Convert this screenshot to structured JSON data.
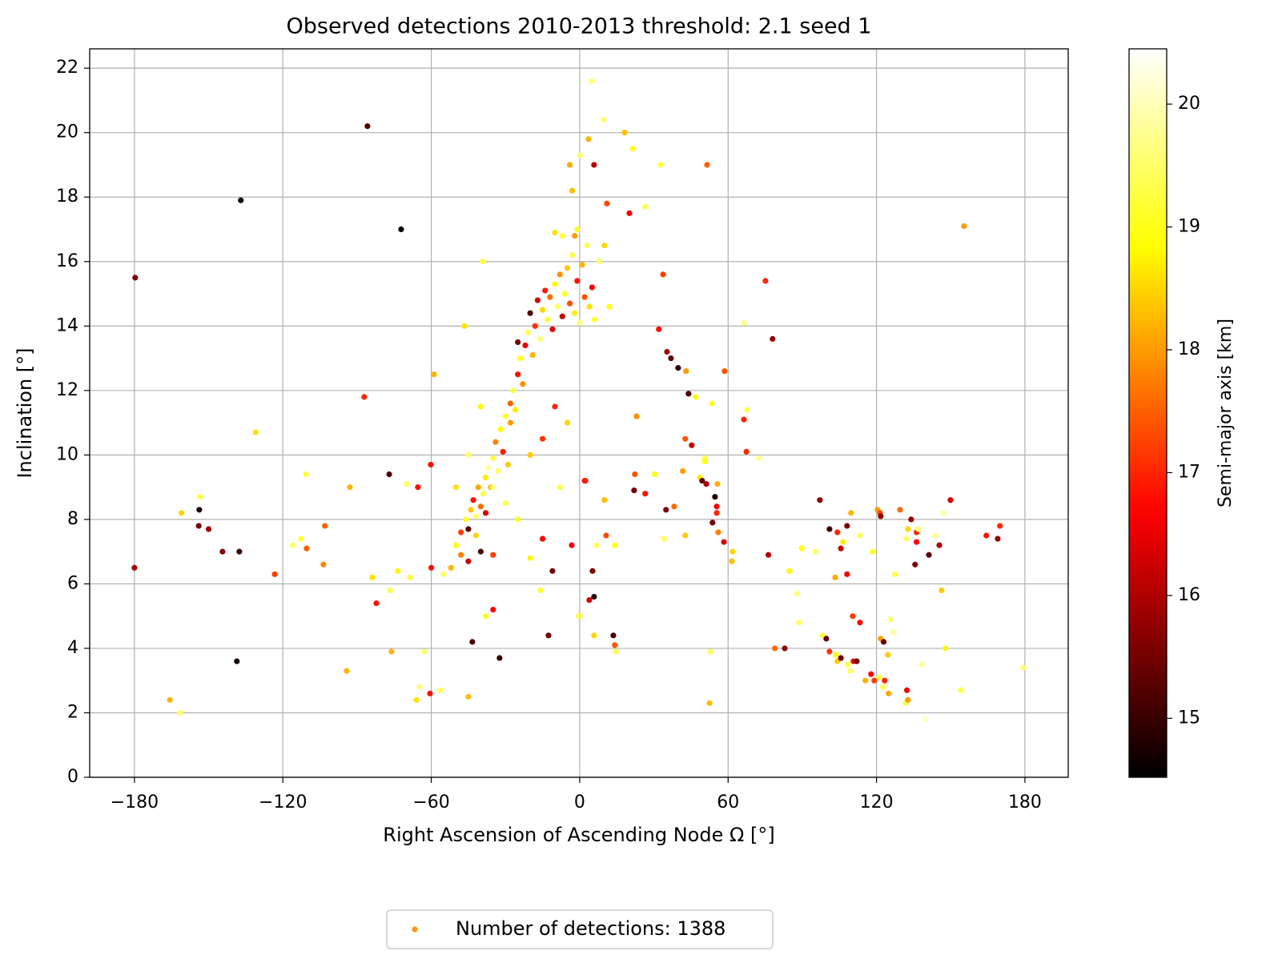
{
  "chart_data": {
    "type": "scatter",
    "title": "Observed detections 2010-2013  threshold: 2.1 seed 1",
    "xlabel": "Right Ascension of Ascending Node Ω [°]",
    "ylabel": "Inclination [°]",
    "colorbar_label": "Semi-major axis [km]",
    "colormap": "hot",
    "clim": [
      14.52,
      20.45
    ],
    "cticks": [
      15,
      16,
      17,
      18,
      19,
      20
    ],
    "xlim": [
      -198.1,
      197.5
    ],
    "ylim": [
      0,
      22.6
    ],
    "xticks": [
      {
        "value": -180,
        "label": "−180"
      },
      {
        "value": -120,
        "label": "−120"
      },
      {
        "value": -60,
        "label": "−60"
      },
      0,
      60,
      120,
      180
    ],
    "yticks": [
      0,
      2,
      4,
      6,
      8,
      10,
      12,
      14,
      16,
      18,
      20,
      22
    ],
    "grid": true,
    "legend": {
      "label": "Number of detections: 1388",
      "color": "#f7960f",
      "loc": "lower center"
    },
    "x": [
      -179.7,
      -180,
      -137,
      -85.8,
      -72.2,
      155.4,
      -165.7,
      -161.5,
      -153.8,
      -153.5,
      -161,
      -154,
      -150,
      -144.4,
      -137.6,
      -138.6,
      -131,
      -123.3,
      -116,
      -112.7,
      -110.7,
      -110.4,
      -103.6,
      -103,
      -94.2,
      -92.9,
      -87.1,
      -83.8,
      -82.2,
      -77,
      -76.1,
      -76.7,
      -73.5,
      -69.9,
      -68.6,
      -66,
      -64.7,
      -65.4,
      -62.8,
      -60.5,
      -60.2,
      -58.9,
      -56.3,
      -45,
      -43.4,
      -46.6,
      -39.2,
      -32.4,
      -35,
      -37.9,
      -12.6,
      -15.9,
      -11,
      -3.2,
      -0.3,
      3.9,
      5.8,
      5.8,
      5.2,
      13.6,
      14.2,
      14.6,
      6.8,
      10.7,
      14.2,
      2.3,
      10,
      4.9,
      9.7,
      18.1,
      21.4,
      32.7,
      51.5,
      5.8,
      3.6,
      20.1,
      26.5,
      11,
      32,
      33.7,
      35.3,
      36.9,
      39.8,
      43,
      44,
      46.9,
      58.6,
      53.4,
      66.4,
      75.1,
      78,
      66.4,
      67.7,
      67.4,
      72.5,
      42.7,
      45.3,
      50.5,
      41.7,
      50.5,
      48.6,
      49.5,
      51.2,
      55.7,
      54.7,
      55.4,
      55.4,
      53.7,
      56,
      58.3,
      61.8,
      61.5,
      52.8,
      52.5,
      42.7,
      34,
      34.9,
      38.2,
      22.3,
      22,
      26.5,
      30.4,
      23,
      76.3,
      78.9,
      82.9,
      84.8,
      88,
      88.7,
      89.7,
      95.2,
      97.1,
      101,
      103.3,
      104.2,
      105.6,
      106.5,
      108.1,
      108.1,
      109.7,
      110.4,
      113.3,
      113.3,
      98.1,
      99.7,
      101,
      103.6,
      104.2,
      105.6,
      108.4,
      110.7,
      112,
      109.4,
      115.5,
      117.8,
      119.1,
      121.7,
      122.9,
      123.3,
      121,
      122.6,
      124.9,
      124.6,
      125.6,
      126.9,
      127.5,
      120.4,
      121.4,
      121.7,
      118.5,
      129.5,
      132,
      132.7,
      134,
      136.2,
      136.2,
      136.9,
      135.6,
      131.7,
      132.3,
      132.7,
      138.2,
      139.9,
      141.2,
      145.4,
      146.3,
      147,
      147.9,
      149.9,
      143.7,
      154.1,
      164.4,
      169,
      169.9,
      179.3,
      -50,
      -48,
      -46,
      -45,
      -44,
      -43,
      -42,
      -41,
      -40,
      -39,
      -38,
      -38,
      -37,
      -36,
      -35,
      -34,
      -33,
      -32,
      -31,
      -30,
      -29,
      -28,
      -27,
      -26,
      -25,
      -24,
      -23,
      -22,
      -21,
      -20,
      -19,
      -18,
      -17,
      -16,
      -15,
      -14,
      -13,
      -12,
      -11,
      -10,
      -9,
      -8,
      -7,
      -6,
      -5,
      -4,
      -3,
      -2,
      -1,
      0,
      1,
      2,
      3,
      4,
      5,
      6,
      -1,
      -2,
      -7,
      -10,
      -3,
      0,
      -4,
      8,
      10,
      12,
      -25,
      -28,
      -35,
      -42,
      -52,
      -55,
      -48,
      -30,
      -20,
      -15,
      -10,
      -5,
      -45,
      -50,
      -40,
      -60,
      -25,
      -15,
      -20,
      -8,
      2,
      -35,
      -40,
      -45
    ],
    "values": [
      15.5,
      6.5,
      17.9,
      20.2,
      17.0,
      17.1,
      2.4,
      2.0,
      8.3,
      8.7,
      8.2,
      7.8,
      7.7,
      7.0,
      7.0,
      3.6,
      10.7,
      6.3,
      7.2,
      7.4,
      9.4,
      7.1,
      6.6,
      7.8,
      3.3,
      9.0,
      11.8,
      6.2,
      5.4,
      9.4,
      3.9,
      5.8,
      6.4,
      9.1,
      6.2,
      2.4,
      2.8,
      9.0,
      3.9,
      2.6,
      9.7,
      12.5,
      2.7,
      2.5,
      4.2,
      14.0,
      16.0,
      3.7,
      5.2,
      5.0,
      4.4,
      5.8,
      6.4,
      7.2,
      5.0,
      5.5,
      5.6,
      4.4,
      6.4,
      4.4,
      4.1,
      3.9,
      7.2,
      7.5,
      7.2,
      9.2,
      8.6,
      21.6,
      20.4,
      20.0,
      19.5,
      19.0,
      19.0,
      19.0,
      19.8,
      17.5,
      17.7,
      17.8,
      13.9,
      15.6,
      13.2,
      13.0,
      12.7,
      12.6,
      11.9,
      11.8,
      12.6,
      11.6,
      14.1,
      15.4,
      13.6,
      11.1,
      11.4,
      10.1,
      9.9,
      10.5,
      10.3,
      9.9,
      9.5,
      9.8,
      9.3,
      9.2,
      9.1,
      9.1,
      8.7,
      8.4,
      8.2,
      7.9,
      7.6,
      7.3,
      7.0,
      6.7,
      3.9,
      2.3,
      7.5,
      7.4,
      8.3,
      8.4,
      9.4,
      8.9,
      8.8,
      9.4,
      11.2,
      6.9,
      4.0,
      4.0,
      6.4,
      5.7,
      4.8,
      7.1,
      7.0,
      8.6,
      7.7,
      6.2,
      7.6,
      7.1,
      7.3,
      6.3,
      7.8,
      8.2,
      5.0,
      4.8,
      7.5,
      4.4,
      4.3,
      3.9,
      3.8,
      3.6,
      3.7,
      3.5,
      3.6,
      3.6,
      3.3,
      3.0,
      3.2,
      3.0,
      4.3,
      4.2,
      3.0,
      3.1,
      2.8,
      2.6,
      3.8,
      4.9,
      4.5,
      6.3,
      8.3,
      8.2,
      8.1,
      7.0,
      8.3,
      7.4,
      7.7,
      8.0,
      7.6,
      7.3,
      7.7,
      6.6,
      2.3,
      2.7,
      2.4,
      3.5,
      1.8,
      6.9,
      7.2,
      5.8,
      8.2,
      4.0,
      8.6,
      7.5,
      2.7,
      7.5,
      7.4,
      7.8,
      3.4,
      7.2,
      7.6,
      8.0,
      7.7,
      8.3,
      8.6,
      8.1,
      9.0,
      8.4,
      8.8,
      9.3,
      8.2,
      9.6,
      9.0,
      9.9,
      10.4,
      9.5,
      10.8,
      10.1,
      11.2,
      9.7,
      11.6,
      12.0,
      11.4,
      12.5,
      13.0,
      12.2,
      13.4,
      13.8,
      14.4,
      13.1,
      14.0,
      14.8,
      13.6,
      14.5,
      15.1,
      14.2,
      14.9,
      13.9,
      15.3,
      14.6,
      15.6,
      14.3,
      15.0,
      15.8,
      14.7,
      16.2,
      14.4,
      15.4,
      14.1,
      15.9,
      14.9,
      16.5,
      14.6,
      15.2,
      14.2,
      17.0,
      16.8,
      16.8,
      16.9,
      18.2,
      19.3,
      19.0,
      16.0,
      16.5,
      14.6,
      13.5,
      11.0,
      9.0,
      7.5,
      6.5,
      6.3,
      6.9,
      8.5,
      10.0,
      10.5,
      11.5,
      11.0,
      10.0,
      9.0,
      11.5,
      6.5,
      8.0,
      7.4,
      6.8,
      9.0,
      9.2,
      6.9,
      7.0,
      6.7
    ],
    "c": [
      15.6,
      16,
      14.6,
      15.2,
      14.6,
      18,
      18.2,
      19.5,
      14.7,
      19.2,
      18.5,
      15.5,
      15.9,
      15.7,
      14.9,
      14.7,
      18.6,
      17.2,
      19.5,
      19.2,
      19.2,
      17.5,
      17.8,
      17.5,
      18.2,
      18.2,
      17,
      18.6,
      16.8,
      15.2,
      18.2,
      19.3,
      18.8,
      19.4,
      19.2,
      18.6,
      19.6,
      16.8,
      19.5,
      16.8,
      16.8,
      18.2,
      19.4,
      18.3,
      15.2,
      18.6,
      19.3,
      15,
      16.7,
      19,
      15.5,
      19.2,
      15.5,
      16.6,
      19.2,
      16.3,
      14.8,
      18.5,
      15.6,
      15.2,
      17.4,
      19.3,
      19.4,
      17.3,
      19,
      17,
      18.3,
      19.5,
      19.5,
      18.3,
      19,
      19.2,
      17.5,
      16.1,
      18.2,
      16.6,
      19.3,
      17.3,
      16.8,
      17.2,
      15.9,
      15.3,
      14.9,
      18,
      15.2,
      18.9,
      17.4,
      19,
      19.7,
      17,
      15.7,
      17,
      19.3,
      17,
      19.7,
      17.4,
      16.2,
      19.4,
      18,
      19,
      18.7,
      15.4,
      15.9,
      18.2,
      14.8,
      16.7,
      17,
      15.5,
      17.8,
      16.4,
      18.5,
      18.3,
      19.4,
      18.3,
      18.4,
      19.4,
      15.6,
      17.6,
      17.4,
      15.5,
      16.8,
      18.9,
      17.9,
      16,
      17.6,
      15.7,
      18.8,
      19.6,
      19.4,
      18.9,
      19.5,
      15.8,
      15,
      18.1,
      17,
      16.1,
      18.7,
      16.6,
      15.6,
      18.2,
      17.2,
      16.8,
      19.4,
      19.2,
      15.3,
      17.1,
      18.8,
      18.4,
      15.5,
      19.2,
      16.6,
      15.4,
      19.5,
      18.2,
      16.7,
      17.2,
      18,
      15.4,
      17,
      19.3,
      19.4,
      18.1,
      18.4,
      19.6,
      19.8,
      19.3,
      18,
      17.3,
      15.8,
      19,
      17.6,
      19.5,
      18.5,
      15.8,
      17,
      16.7,
      19.6,
      15.6,
      19.3,
      16.6,
      18,
      19.8,
      20,
      15.3,
      16,
      18.4,
      19.8,
      18.8,
      16.3,
      19.7,
      19.3,
      16.8,
      15.8,
      17,
      19.5,
      18.9,
      17.2,
      19.1,
      15.3,
      18.4,
      16.8,
      19.5,
      18.1,
      17.6,
      19.3,
      18.7,
      16.4,
      19.8,
      18.3,
      19.2,
      17.8,
      19.5,
      18.9,
      16.9,
      19.1,
      18.4,
      17.5,
      19.3,
      18.7,
      16.8,
      19.0,
      17.9,
      16.5,
      19.4,
      15.2,
      18.2,
      17.1,
      16.3,
      19.6,
      18.5,
      16.9,
      19.2,
      17.6,
      16.4,
      18.8,
      19.5,
      17.9,
      16.2,
      19.1,
      18.4,
      17.3,
      19.3,
      18.7,
      16.8,
      19.6,
      18.2,
      17.4,
      19.4,
      18.6,
      16.6,
      19.2,
      19.1,
      18.0,
      19.2,
      18.6,
      18.3,
      19.5,
      18.1,
      19.5,
      18.5,
      19.0,
      15.5,
      18.0,
      19.7,
      18.5,
      18.2,
      19.4,
      17.8,
      19.3,
      18.4,
      17.1,
      17.0,
      18.5,
      19.5,
      18.6,
      18.8,
      16.8,
      19.0,
      16.7,
      18.8,
      19.3,
      16.9,
      17.2,
      15.1,
      16.2
    ]
  }
}
